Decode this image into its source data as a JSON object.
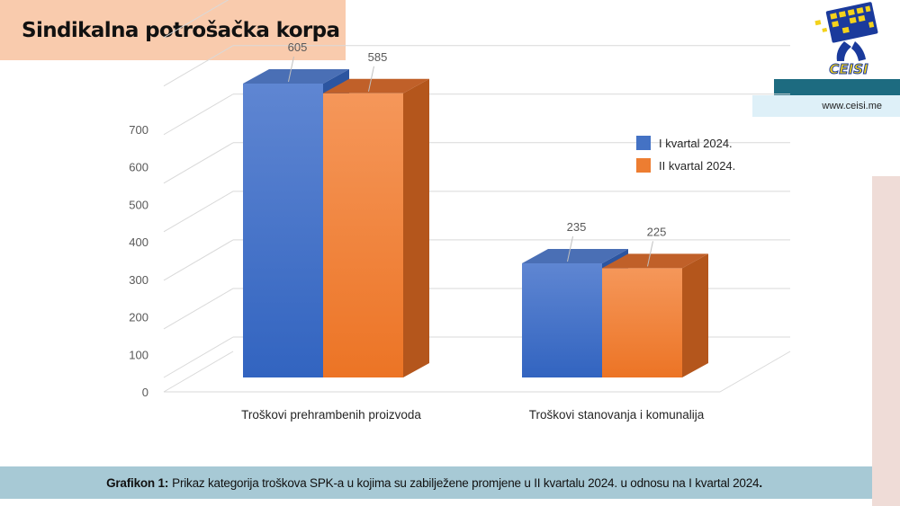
{
  "header": {
    "title": "Sindikalna potrošačka korpa"
  },
  "logo": {
    "text": "CEISI",
    "icon": "ceisi-logo-icon"
  },
  "site": {
    "url": "www.ceisi.me"
  },
  "caption": {
    "label": "Grafikon 1:",
    "text": "Prikaz kategorija troškova SPK-a u kojima su zabilježene promjene u II kvartalu 2024. u odnosu na I kvartal 2024",
    "end": "."
  },
  "chart_data": {
    "type": "bar",
    "categories": [
      "Troškovi prehrambenih proizvoda",
      "Troškovi stanovanja i komunalija"
    ],
    "series": [
      {
        "name": "I kvartal 2024.",
        "values": [
          605,
          235
        ],
        "color": "#4472c4"
      },
      {
        "name": "II kvartal 2024.",
        "values": [
          585,
          225
        ],
        "color": "#ed7d31"
      }
    ],
    "ylim": [
      0,
      700
    ],
    "yticks": [
      0,
      100,
      200,
      300,
      400,
      500,
      600,
      700
    ],
    "legend_position": "top-right",
    "grid": true,
    "three_d": true
  }
}
